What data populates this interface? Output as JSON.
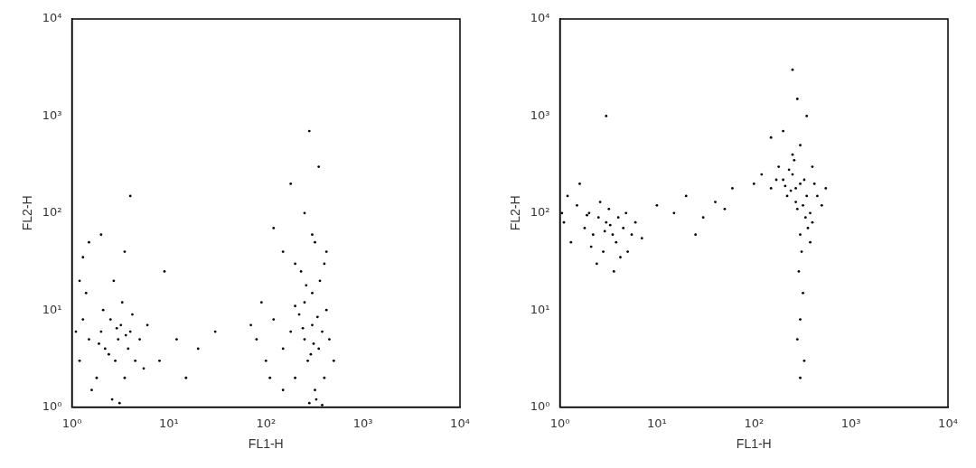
{
  "chart_data": [
    {
      "type": "scatter",
      "x_label": "FL1-H",
      "y_label": "FL2-H",
      "color": "#000000",
      "marker": "dot",
      "log": true,
      "grid": false,
      "xlim": [
        1,
        10000
      ],
      "ylim": [
        1,
        10000
      ],
      "xticks": [
        {
          "value": 1,
          "label": "10⁰"
        },
        {
          "value": 10,
          "label": "10¹"
        },
        {
          "value": 100,
          "label": "10²"
        },
        {
          "value": 1000,
          "label": "10³"
        },
        {
          "value": 10000,
          "label": "10⁴"
        }
      ],
      "yticks": [
        {
          "value": 1,
          "label": "10⁰"
        },
        {
          "value": 10,
          "label": "10¹"
        },
        {
          "value": 100,
          "label": "10²"
        },
        {
          "value": 1000,
          "label": "10³"
        },
        {
          "value": 10000,
          "label": "10⁴"
        }
      ],
      "x": [
        1.2,
        1.5,
        1.8,
        2,
        2.2,
        2.5,
        2.8,
        3,
        3.2,
        3.5,
        3.8,
        4,
        4.5,
        5,
        1.3,
        1.6,
        2.1,
        2.6,
        3.3,
        4.2,
        1.1,
        2.9,
        3.6,
        2.4,
        1.9,
        5.5,
        6,
        1.4,
        2.7,
        3.1,
        1.5,
        2,
        3.5,
        1.2,
        4,
        1.3,
        8,
        12,
        15,
        20,
        30,
        9,
        80,
        100,
        120,
        150,
        180,
        200,
        220,
        250,
        270,
        300,
        320,
        350,
        380,
        400,
        420,
        450,
        250,
        300,
        280,
        330,
        360,
        200,
        150,
        90,
        70,
        110,
        240,
        310,
        340,
        290,
        500,
        380,
        260,
        150,
        200,
        250,
        300,
        350,
        400,
        280,
        180,
        320,
        420,
        230,
        120
      ],
      "values": [
        3,
        5,
        2,
        6,
        4,
        8,
        3,
        5,
        7,
        2,
        4,
        6,
        3,
        5,
        8,
        1.5,
        10,
        1.2,
        12,
        9,
        6,
        6.5,
        5.5,
        3.5,
        4.5,
        2.5,
        7,
        15,
        20,
        1.1,
        50,
        60,
        40,
        20,
        150,
        35,
        3,
        5,
        2,
        4,
        6,
        25,
        5,
        3,
        8,
        4,
        6,
        2,
        9,
        5,
        3,
        7,
        1.5,
        4,
        6,
        2,
        10,
        5,
        12,
        15,
        1.1,
        1.2,
        20,
        11,
        1.5,
        12,
        7,
        2,
        6.5,
        4.5,
        8.5,
        3.5,
        3,
        1.05,
        18,
        40,
        30,
        100,
        60,
        300,
        30,
        700,
        200,
        50,
        40,
        25,
        70
      ]
    },
    {
      "type": "scatter",
      "x_label": "FL1-H",
      "y_label": "FL2-H",
      "color": "#000000",
      "marker": "dot",
      "log": true,
      "grid": false,
      "xlim": [
        1,
        10000
      ],
      "ylim": [
        1,
        10000
      ],
      "xticks": [
        {
          "value": 1,
          "label": "10⁰"
        },
        {
          "value": 10,
          "label": "10¹"
        },
        {
          "value": 100,
          "label": "10²"
        },
        {
          "value": 1000,
          "label": "10³"
        },
        {
          "value": 10000,
          "label": "10⁴"
        }
      ],
      "yticks": [
        {
          "value": 1,
          "label": "10⁰"
        },
        {
          "value": 10,
          "label": "10¹"
        },
        {
          "value": 100,
          "label": "10²"
        },
        {
          "value": 1000,
          "label": "10³"
        },
        {
          "value": 10000,
          "label": "10⁴"
        }
      ],
      "x": [
        1.1,
        1.3,
        1.5,
        1.8,
        2,
        2.2,
        2.5,
        2.8,
        3,
        3.2,
        3.5,
        3.8,
        4,
        4.5,
        5,
        5.5,
        6,
        1.2,
        2.4,
        3.6,
        1.6,
        2.6,
        4.2,
        7,
        1.05,
        2.1,
        3.3,
        2.9,
        1.9,
        4.8,
        10,
        15,
        20,
        30,
        40,
        50,
        60,
        25,
        3,
        100,
        120,
        150,
        180,
        200,
        220,
        250,
        270,
        300,
        320,
        350,
        380,
        400,
        420,
        450,
        500,
        250,
        300,
        200,
        350,
        280,
        250,
        300,
        310,
        290,
        320,
        300,
        280,
        330,
        300,
        260,
        230,
        170,
        340,
        360,
        270,
        240,
        210,
        330,
        280,
        400,
        150,
        550,
        380
      ],
      "values": [
        80,
        50,
        120,
        70,
        100,
        60,
        90,
        40,
        80,
        110,
        60,
        50,
        90,
        70,
        40,
        60,
        80,
        150,
        30,
        25,
        200,
        130,
        35,
        55,
        100,
        45,
        75,
        65,
        95,
        100,
        120,
        100,
        150,
        90,
        130,
        110,
        180,
        60,
        1000,
        200,
        250,
        180,
        300,
        220,
        150,
        250,
        180,
        200,
        120,
        150,
        100,
        80,
        200,
        150,
        120,
        400,
        500,
        700,
        1000,
        1500,
        3000,
        60,
        40,
        25,
        15,
        8,
        5,
        3,
        2,
        350,
        280,
        220,
        90,
        70,
        130,
        170,
        190,
        220,
        110,
        300,
        600,
        180,
        50
      ]
    }
  ]
}
